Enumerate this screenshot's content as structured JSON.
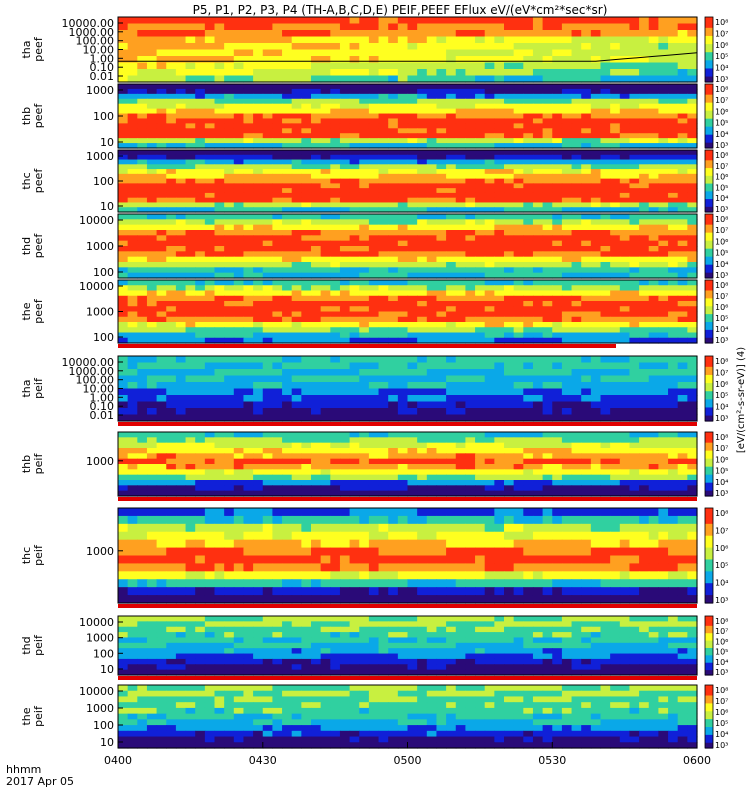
{
  "title": "P5, P1, P2, P3, P4 (TH-A,B,C,D,E) PEIF,PEEF EFlux eV/(eV*cm²*sec*sr)",
  "colorbar_label": "[eV/(cm²-s-sr-eV)] (4)",
  "footer": {
    "label": "hhmm",
    "date": "2017 Apr 05"
  },
  "colors": {
    "scale": [
      "#2a0a78",
      "#1020d8",
      "#0aa8e8",
      "#30d0a0",
      "#c8f040",
      "#ffff20",
      "#ffa020",
      "#ff3010",
      "#ee0000"
    ],
    "trace": "#000000",
    "bar": "#e00000"
  },
  "chart_data": {
    "type": "heatmap",
    "x_ticks": [
      "0400",
      "0430",
      "0500",
      "0530",
      "0600"
    ],
    "x_range": [
      "0400",
      "0600"
    ],
    "colorbar_ticks": [
      "10⁸",
      "10⁷",
      "10⁶",
      "10⁵",
      "10⁴",
      "10³"
    ],
    "grid": false,
    "panels": [
      {
        "label": [
          "tha",
          "peef"
        ],
        "yticks": [
          "10000.00",
          "1000.00",
          "100.00",
          "10.00",
          "1.00",
          "0.10",
          "0.01"
        ],
        "y_range": [
          0.01,
          10000
        ],
        "y_log": true,
        "has_trace": true
      },
      {
        "label": [
          "thb",
          "peef"
        ],
        "yticks": [
          "1000",
          "100",
          "10"
        ],
        "y_log": true
      },
      {
        "label": [
          "thc",
          "peef"
        ],
        "yticks": [
          "1000",
          "100",
          "10"
        ],
        "y_log": true
      },
      {
        "label": [
          "thd",
          "peef"
        ],
        "yticks": [
          "10000",
          "1000",
          "100"
        ],
        "y_log": true
      },
      {
        "label": [
          "the",
          "peef"
        ],
        "yticks": [
          "10000",
          "1000",
          "100"
        ],
        "y_log": true
      },
      {
        "label": [
          "tha",
          "peif"
        ],
        "yticks": [
          "10000.00",
          "1000.00",
          "100.00",
          "10.00",
          "1.00",
          "0.10",
          "0.01"
        ],
        "y_range": [
          0.01,
          10000
        ],
        "y_log": true
      },
      {
        "label": [
          "thb",
          "peif"
        ],
        "yticks": [
          "1000"
        ],
        "y_log": true
      },
      {
        "label": [
          "thc",
          "peif"
        ],
        "yticks": [
          "1000"
        ],
        "y_log": true
      },
      {
        "label": [
          "thd",
          "peif"
        ],
        "yticks": [
          "10000",
          "1000",
          "100",
          "10"
        ],
        "y_log": true
      },
      {
        "label": [
          "the",
          "peif"
        ],
        "yticks": [
          "10000",
          "1000",
          "100",
          "10"
        ],
        "y_log": true
      }
    ]
  }
}
